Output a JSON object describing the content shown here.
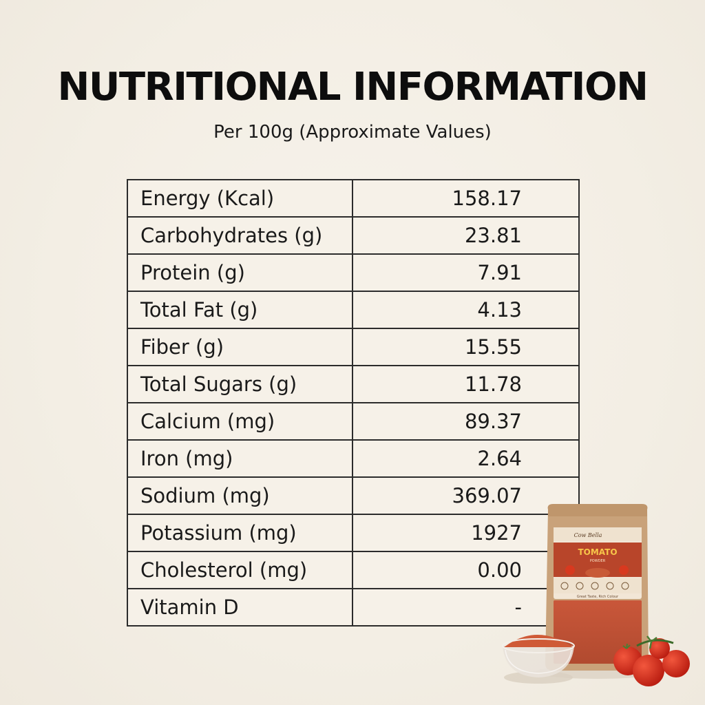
{
  "header": {
    "title": "NUTRITIONAL INFORMATION",
    "subtitle": "Per 100g (Approximate Values)"
  },
  "table": {
    "rows": [
      {
        "label": "Energy (Kcal)",
        "value": "158.17"
      },
      {
        "label": "Carbohydrates (g)",
        "value": "23.81"
      },
      {
        "label": "Protein (g)",
        "value": "7.91"
      },
      {
        "label": "Total Fat (g)",
        "value": "4.13"
      },
      {
        "label": "Fiber (g)",
        "value": "15.55"
      },
      {
        "label": "Total Sugars (g)",
        "value": "11.78"
      },
      {
        "label": "Calcium (mg)",
        "value": "89.37"
      },
      {
        "label": "Iron (mg)",
        "value": "2.64"
      },
      {
        "label": "Sodium (mg)",
        "value": "369.07"
      },
      {
        "label": "Potassium (mg)",
        "value": "1927"
      },
      {
        "label": "Cholesterol (mg)",
        "value": "0.00"
      },
      {
        "label": "Vitamin D",
        "value": "-"
      }
    ]
  },
  "product": {
    "brand_text": "Cow Bella",
    "name_text": "TOMATO",
    "sub_text": "POWDER",
    "tagline_text": "Great Taste, Rich Colour"
  },
  "colors": {
    "background": "#f4efe6",
    "border": "#2b2b2b",
    "text": "#1a1a1a",
    "pouch_kraft": "#c9a27a",
    "label_red": "#b8452a",
    "powder": "#c9573a",
    "tomato": "#d42a1c"
  }
}
